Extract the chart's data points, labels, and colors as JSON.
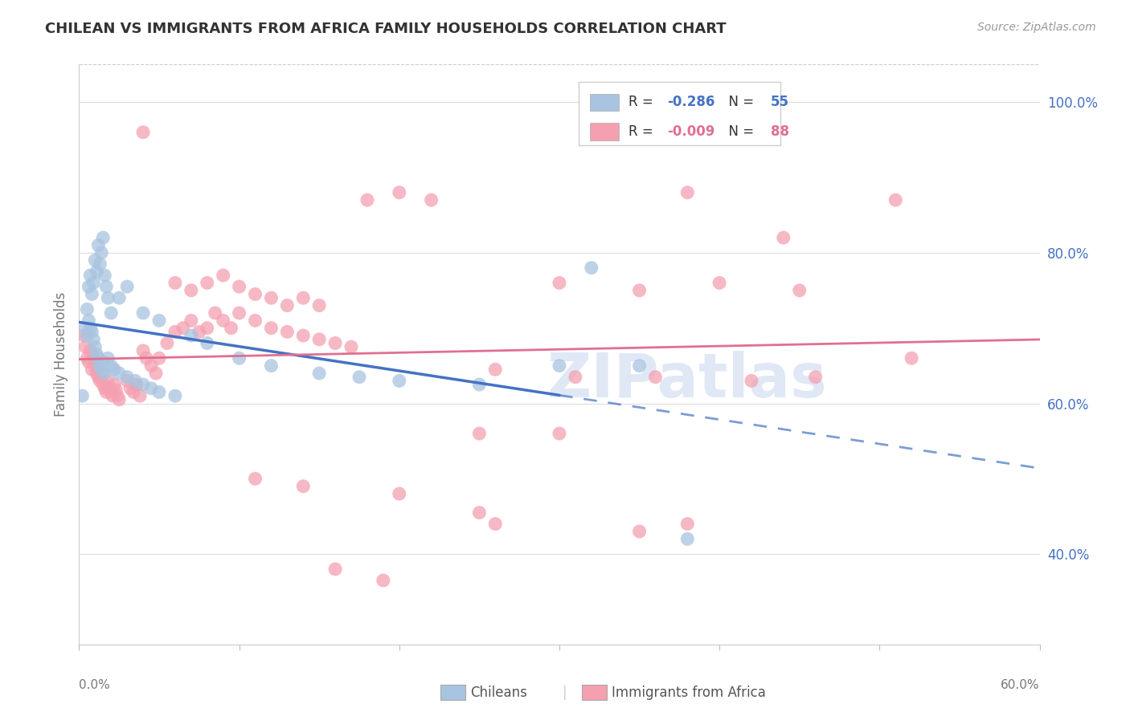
{
  "title": "CHILEAN VS IMMIGRANTS FROM AFRICA FAMILY HOUSEHOLDS CORRELATION CHART",
  "source": "Source: ZipAtlas.com",
  "ylabel": "Family Households",
  "bottom_legend_1": "Chileans",
  "bottom_legend_2": "Immigrants from Africa",
  "xlim": [
    0.0,
    0.6
  ],
  "ylim": [
    0.28,
    1.05
  ],
  "blue_color": "#a8c4e0",
  "pink_color": "#f4a0b0",
  "blue_line_color": "#4472c4",
  "pink_line_color": "#e07090",
  "watermark_color": "#ccd9f0",
  "background_color": "#ffffff",
  "grid_color": "#dddddd",
  "right_tick_color": "#4472c4",
  "legend_r_blue": "-0.286",
  "legend_n_blue": "55",
  "legend_r_pink": "-0.009",
  "legend_n_pink": "88",
  "blue_scatter": [
    [
      0.005,
      0.725
    ],
    [
      0.006,
      0.755
    ],
    [
      0.007,
      0.77
    ],
    [
      0.008,
      0.745
    ],
    [
      0.009,
      0.76
    ],
    [
      0.01,
      0.79
    ],
    [
      0.011,
      0.775
    ],
    [
      0.012,
      0.81
    ],
    [
      0.013,
      0.785
    ],
    [
      0.014,
      0.8
    ],
    [
      0.015,
      0.82
    ],
    [
      0.016,
      0.77
    ],
    [
      0.017,
      0.755
    ],
    [
      0.018,
      0.74
    ],
    [
      0.004,
      0.7
    ],
    [
      0.005,
      0.69
    ],
    [
      0.006,
      0.71
    ],
    [
      0.007,
      0.7
    ],
    [
      0.008,
      0.695
    ],
    [
      0.009,
      0.685
    ],
    [
      0.01,
      0.675
    ],
    [
      0.011,
      0.665
    ],
    [
      0.012,
      0.66
    ],
    [
      0.013,
      0.65
    ],
    [
      0.014,
      0.645
    ],
    [
      0.015,
      0.655
    ],
    [
      0.016,
      0.64
    ],
    [
      0.018,
      0.66
    ],
    [
      0.02,
      0.65
    ],
    [
      0.022,
      0.645
    ],
    [
      0.025,
      0.64
    ],
    [
      0.03,
      0.635
    ],
    [
      0.035,
      0.63
    ],
    [
      0.04,
      0.625
    ],
    [
      0.045,
      0.62
    ],
    [
      0.05,
      0.615
    ],
    [
      0.06,
      0.61
    ],
    [
      0.02,
      0.72
    ],
    [
      0.025,
      0.74
    ],
    [
      0.03,
      0.755
    ],
    [
      0.04,
      0.72
    ],
    [
      0.05,
      0.71
    ],
    [
      0.07,
      0.69
    ],
    [
      0.08,
      0.68
    ],
    [
      0.1,
      0.66
    ],
    [
      0.12,
      0.65
    ],
    [
      0.15,
      0.64
    ],
    [
      0.175,
      0.635
    ],
    [
      0.2,
      0.63
    ],
    [
      0.25,
      0.625
    ],
    [
      0.3,
      0.65
    ],
    [
      0.32,
      0.78
    ],
    [
      0.35,
      0.65
    ],
    [
      0.38,
      0.42
    ],
    [
      0.002,
      0.61
    ]
  ],
  "pink_scatter": [
    [
      0.003,
      0.69
    ],
    [
      0.004,
      0.675
    ],
    [
      0.005,
      0.66
    ],
    [
      0.006,
      0.655
    ],
    [
      0.007,
      0.67
    ],
    [
      0.008,
      0.645
    ],
    [
      0.009,
      0.66
    ],
    [
      0.01,
      0.65
    ],
    [
      0.011,
      0.64
    ],
    [
      0.012,
      0.635
    ],
    [
      0.013,
      0.63
    ],
    [
      0.014,
      0.64
    ],
    [
      0.015,
      0.625
    ],
    [
      0.016,
      0.62
    ],
    [
      0.017,
      0.615
    ],
    [
      0.018,
      0.63
    ],
    [
      0.019,
      0.62
    ],
    [
      0.02,
      0.615
    ],
    [
      0.021,
      0.61
    ],
    [
      0.022,
      0.625
    ],
    [
      0.023,
      0.618
    ],
    [
      0.024,
      0.61
    ],
    [
      0.025,
      0.605
    ],
    [
      0.03,
      0.63
    ],
    [
      0.032,
      0.62
    ],
    [
      0.034,
      0.615
    ],
    [
      0.036,
      0.625
    ],
    [
      0.038,
      0.61
    ],
    [
      0.04,
      0.67
    ],
    [
      0.042,
      0.66
    ],
    [
      0.045,
      0.65
    ],
    [
      0.048,
      0.64
    ],
    [
      0.05,
      0.66
    ],
    [
      0.055,
      0.68
    ],
    [
      0.06,
      0.695
    ],
    [
      0.065,
      0.7
    ],
    [
      0.07,
      0.71
    ],
    [
      0.075,
      0.695
    ],
    [
      0.08,
      0.7
    ],
    [
      0.085,
      0.72
    ],
    [
      0.09,
      0.71
    ],
    [
      0.095,
      0.7
    ],
    [
      0.1,
      0.72
    ],
    [
      0.11,
      0.71
    ],
    [
      0.12,
      0.7
    ],
    [
      0.13,
      0.695
    ],
    [
      0.14,
      0.69
    ],
    [
      0.15,
      0.685
    ],
    [
      0.16,
      0.68
    ],
    [
      0.17,
      0.675
    ],
    [
      0.06,
      0.76
    ],
    [
      0.07,
      0.75
    ],
    [
      0.08,
      0.76
    ],
    [
      0.09,
      0.77
    ],
    [
      0.1,
      0.755
    ],
    [
      0.11,
      0.745
    ],
    [
      0.12,
      0.74
    ],
    [
      0.13,
      0.73
    ],
    [
      0.14,
      0.74
    ],
    [
      0.15,
      0.73
    ],
    [
      0.04,
      0.96
    ],
    [
      0.18,
      0.87
    ],
    [
      0.2,
      0.88
    ],
    [
      0.22,
      0.87
    ],
    [
      0.38,
      0.88
    ],
    [
      0.44,
      0.82
    ],
    [
      0.51,
      0.87
    ],
    [
      0.3,
      0.76
    ],
    [
      0.35,
      0.75
    ],
    [
      0.4,
      0.76
    ],
    [
      0.45,
      0.75
    ],
    [
      0.52,
      0.66
    ],
    [
      0.26,
      0.645
    ],
    [
      0.31,
      0.635
    ],
    [
      0.36,
      0.635
    ],
    [
      0.42,
      0.63
    ],
    [
      0.46,
      0.635
    ],
    [
      0.2,
      0.48
    ],
    [
      0.25,
      0.455
    ],
    [
      0.26,
      0.44
    ],
    [
      0.35,
      0.43
    ],
    [
      0.38,
      0.44
    ],
    [
      0.16,
      0.38
    ],
    [
      0.19,
      0.365
    ],
    [
      0.11,
      0.5
    ],
    [
      0.14,
      0.49
    ],
    [
      0.25,
      0.56
    ],
    [
      0.3,
      0.56
    ]
  ]
}
